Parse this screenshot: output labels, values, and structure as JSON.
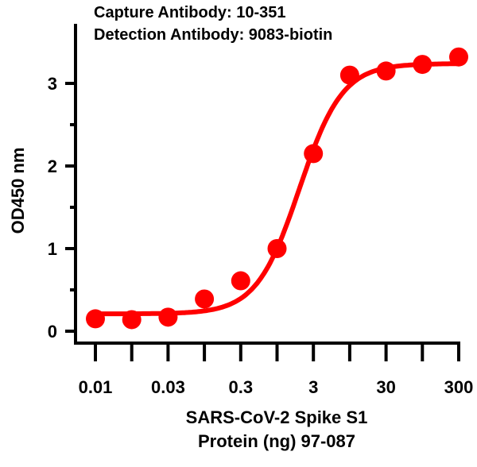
{
  "chart_data": {
    "type": "scatter",
    "title_lines": [
      "Capture Antibody: 10-351",
      "Detection Antibody: 9083-biotin"
    ],
    "xlabel_lines": [
      "SARS-CoV-2 Spike S1",
      "Protein (ng) 97-087"
    ],
    "ylabel": "OD450 nm",
    "x_tick_labels": [
      "0.01",
      "",
      "0.03",
      "",
      "0.3",
      "",
      "3",
      "",
      "30",
      "",
      "300"
    ],
    "y_ticks": [
      0,
      1,
      2,
      3
    ],
    "ylim": [
      0,
      3.4
    ],
    "grid": false,
    "series": [
      {
        "color": "#ff0000",
        "points_y_by_tick": [
          0.15,
          0.14,
          0.17,
          0.39,
          0.61,
          1.0,
          2.15,
          3.1,
          3.15,
          3.23,
          3.32
        ],
        "fit": {
          "model": "4PL",
          "bottom": 0.21,
          "top": 3.24
        }
      }
    ]
  }
}
